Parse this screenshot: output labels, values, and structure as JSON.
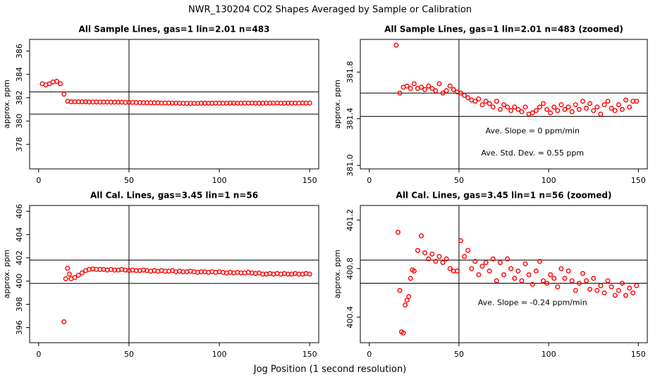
{
  "title": "NWR_130204  CO2 Shapes Averaged by Sample or Calibration",
  "xlabel": "Jog Position (1 second resolution)",
  "chart_data": [
    {
      "type": "scatter",
      "title": "All Sample Lines, gas=1 lin=2.01 n=483",
      "ylabel": "approx. ppm",
      "color": "#ff0000",
      "xlim": [
        -5,
        155
      ],
      "ylim": [
        375.9,
        387.0
      ],
      "xticks": [
        0,
        50,
        100,
        150
      ],
      "yticks": [
        378,
        380,
        382,
        384,
        386
      ],
      "hlines": [
        382.5,
        380.6
      ],
      "vlines": [
        50
      ],
      "x": [
        2,
        4,
        6,
        8,
        10,
        12,
        14,
        16,
        18,
        20,
        22,
        24,
        26,
        28,
        30,
        32,
        34,
        36,
        38,
        40,
        42,
        44,
        46,
        48,
        50,
        52,
        54,
        56,
        58,
        60,
        62,
        64,
        66,
        68,
        70,
        72,
        74,
        76,
        78,
        80,
        82,
        84,
        86,
        88,
        90,
        92,
        94,
        96,
        98,
        100,
        102,
        104,
        106,
        108,
        110,
        112,
        114,
        116,
        118,
        120,
        122,
        124,
        126,
        128,
        130,
        132,
        134,
        136,
        138,
        140,
        142,
        144,
        146,
        148,
        150
      ],
      "values": [
        383.2,
        383.1,
        383.2,
        383.35,
        383.4,
        383.2,
        382.3,
        381.7,
        381.65,
        381.65,
        381.65,
        381.65,
        381.65,
        381.64,
        381.64,
        381.64,
        381.63,
        381.63,
        381.63,
        381.62,
        381.62,
        381.62,
        381.62,
        381.6,
        381.6,
        381.6,
        381.59,
        381.58,
        381.58,
        381.57,
        381.57,
        381.56,
        381.56,
        381.55,
        381.55,
        381.55,
        381.54,
        381.54,
        381.53,
        381.52,
        381.52,
        381.52,
        381.52,
        381.52,
        381.53,
        381.53,
        381.53,
        381.53,
        381.54,
        381.53,
        381.53,
        381.53,
        381.54,
        381.54,
        381.53,
        381.53,
        381.54,
        381.54,
        381.55,
        381.53,
        381.53,
        381.53,
        381.54,
        381.54,
        381.54,
        381.55,
        381.53,
        381.53,
        381.54,
        381.54,
        381.54,
        381.53,
        381.55,
        381.54,
        381.55
      ],
      "annotations": []
    },
    {
      "type": "scatter",
      "title": "All Sample Lines, gas=1 lin=2.01 n=483 (zoomed)",
      "ylabel": "approx. ppm",
      "color": "#ff0000",
      "xlim": [
        -5,
        155
      ],
      "ylim": [
        380.97,
        382.08
      ],
      "xticks": [
        0,
        50,
        100,
        150
      ],
      "yticks": [
        {
          "value": 381,
          "label": "381.0"
        },
        381.4,
        381.8
      ],
      "hlines": [
        381.62,
        381.42
      ],
      "vlines": [
        50
      ],
      "x": [
        15,
        17,
        19,
        21,
        23,
        25,
        27,
        29,
        31,
        33,
        35,
        37,
        39,
        41,
        43,
        45,
        47,
        49,
        51,
        53,
        55,
        57,
        59,
        61,
        63,
        65,
        67,
        69,
        71,
        73,
        75,
        77,
        79,
        81,
        83,
        85,
        87,
        89,
        91,
        93,
        95,
        97,
        99,
        101,
        103,
        105,
        107,
        109,
        111,
        113,
        115,
        117,
        119,
        121,
        123,
        125,
        127,
        129,
        131,
        133,
        135,
        137,
        139,
        141,
        143,
        145,
        147,
        149
      ],
      "values": [
        382.03,
        381.62,
        381.67,
        381.68,
        381.66,
        381.7,
        381.66,
        381.67,
        381.65,
        381.68,
        381.66,
        381.64,
        381.7,
        381.62,
        381.64,
        381.68,
        381.65,
        381.63,
        381.62,
        381.6,
        381.58,
        381.56,
        381.55,
        381.57,
        381.52,
        381.55,
        381.53,
        381.5,
        381.55,
        381.48,
        381.52,
        381.5,
        381.47,
        381.5,
        381.48,
        381.46,
        381.5,
        381.44,
        381.45,
        381.47,
        381.5,
        381.53,
        381.48,
        381.45,
        381.5,
        381.47,
        381.52,
        381.48,
        381.5,
        381.46,
        381.52,
        381.48,
        381.55,
        381.49,
        381.53,
        381.47,
        381.5,
        381.44,
        381.52,
        381.55,
        381.49,
        381.47,
        381.52,
        381.48,
        381.56,
        381.5,
        381.55,
        381.55
      ],
      "annotations": [
        "Ave. Slope =  0  ppm/min",
        "Ave. Std. Dev. =  0.55  ppm"
      ]
    },
    {
      "type": "scatter",
      "title": "All Cal. Lines, gas=3.45 lin=1 n=56",
      "ylabel": "approx. ppm",
      "color": "#ff0000",
      "xlim": [
        -5,
        155
      ],
      "ylim": [
        394.7,
        406.5
      ],
      "xticks": [
        0,
        50,
        100,
        150
      ],
      "yticks": [
        396,
        398,
        400,
        402,
        404,
        406
      ],
      "hlines": [
        401.8,
        399.8
      ],
      "vlines": [
        50
      ],
      "x": [
        14,
        15,
        16,
        17,
        18,
        20,
        22,
        24,
        26,
        28,
        30,
        32,
        34,
        36,
        38,
        40,
        42,
        44,
        46,
        48,
        50,
        52,
        54,
        56,
        58,
        60,
        62,
        64,
        66,
        68,
        70,
        72,
        74,
        76,
        78,
        80,
        82,
        84,
        86,
        88,
        90,
        92,
        94,
        96,
        98,
        100,
        102,
        104,
        106,
        108,
        110,
        112,
        114,
        116,
        118,
        120,
        122,
        124,
        126,
        128,
        130,
        132,
        134,
        136,
        138,
        140,
        142,
        144,
        146,
        148,
        150
      ],
      "values": [
        396.5,
        400.2,
        401.1,
        400.6,
        400.2,
        400.3,
        400.5,
        400.7,
        400.9,
        401.0,
        401.05,
        401.0,
        401.0,
        401.0,
        400.95,
        401.0,
        400.95,
        400.95,
        401.0,
        400.95,
        400.9,
        400.95,
        400.9,
        400.9,
        400.95,
        400.9,
        400.85,
        400.9,
        400.85,
        400.9,
        400.85,
        400.85,
        400.9,
        400.8,
        400.85,
        400.8,
        400.8,
        400.85,
        400.8,
        400.75,
        400.8,
        400.8,
        400.75,
        400.8,
        400.75,
        400.8,
        400.75,
        400.7,
        400.75,
        400.7,
        400.75,
        400.7,
        400.7,
        400.75,
        400.7,
        400.65,
        400.7,
        400.6,
        400.6,
        400.65,
        400.6,
        400.65,
        400.6,
        400.65,
        400.6,
        400.6,
        400.65,
        400.6,
        400.6,
        400.65,
        400.6
      ],
      "annotations": []
    },
    {
      "type": "scatter",
      "title": "All Cal. Lines, gas=3.45 lin=1 n=56 (zoomed)",
      "ylabel": "approx. ppm",
      "color": "#ff0000",
      "xlim": [
        -5,
        155
      ],
      "ylim": [
        400.19,
        401.32
      ],
      "xticks": [
        0,
        50,
        100,
        150
      ],
      "yticks": [
        400.4,
        400.8,
        401.2
      ],
      "hlines": [
        400.87,
        400.68
      ],
      "vlines": [
        50
      ],
      "x": [
        16,
        17,
        18,
        19,
        20,
        21,
        22,
        23,
        24,
        25,
        27,
        29,
        31,
        33,
        35,
        37,
        39,
        41,
        43,
        45,
        47,
        49,
        51,
        53,
        55,
        57,
        59,
        61,
        63,
        65,
        67,
        69,
        71,
        73,
        75,
        77,
        79,
        81,
        83,
        85,
        87,
        89,
        91,
        93,
        95,
        97,
        99,
        101,
        103,
        105,
        107,
        109,
        111,
        113,
        115,
        117,
        119,
        121,
        123,
        125,
        127,
        129,
        131,
        133,
        135,
        137,
        139,
        141,
        143,
        145,
        147,
        149
      ],
      "values": [
        401.1,
        400.62,
        400.28,
        400.27,
        400.5,
        400.54,
        400.57,
        400.72,
        400.79,
        400.78,
        400.95,
        401.07,
        400.93,
        400.88,
        400.92,
        400.86,
        400.9,
        400.85,
        400.88,
        400.8,
        400.78,
        400.78,
        401.03,
        400.9,
        400.95,
        400.8,
        400.86,
        400.75,
        400.82,
        400.85,
        400.78,
        400.88,
        400.7,
        400.85,
        400.75,
        400.88,
        400.8,
        400.72,
        400.78,
        400.7,
        400.84,
        400.75,
        400.67,
        400.78,
        400.86,
        400.7,
        400.68,
        400.75,
        400.72,
        400.65,
        400.8,
        400.72,
        400.78,
        400.7,
        400.62,
        400.68,
        400.76,
        400.7,
        400.63,
        400.72,
        400.62,
        400.66,
        400.6,
        400.7,
        400.65,
        400.58,
        400.62,
        400.68,
        400.58,
        400.64,
        400.6,
        400.66
      ],
      "annotations": [
        "Ave. Slope =  -0.24  ppm/min"
      ]
    }
  ]
}
